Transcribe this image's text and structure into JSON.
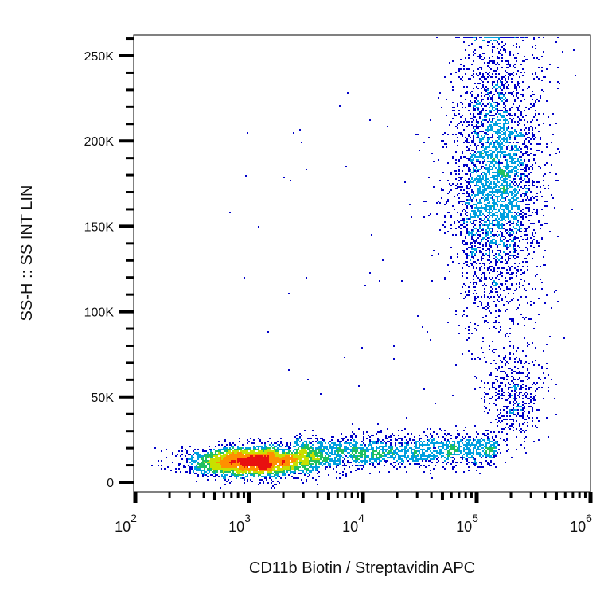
{
  "chart_data": {
    "type": "scatter",
    "subtype": "flow-cytometry density dot plot",
    "xlabel": "CD11b Biotin / Streptavidin APC",
    "ylabel": "SS-H :: SS INT LIN",
    "x_scale": "log",
    "xlim": [
      100,
      1000000
    ],
    "x_ticks": [
      {
        "value": 100,
        "base": "10",
        "exp": "2"
      },
      {
        "value": 1000,
        "base": "10",
        "exp": "3"
      },
      {
        "value": 10000,
        "base": "10",
        "exp": "4"
      },
      {
        "value": 100000,
        "base": "10",
        "exp": "5"
      },
      {
        "value": 1000000,
        "base": "10",
        "exp": "6"
      }
    ],
    "y_scale": "linear",
    "ylim": [
      -5000,
      262000
    ],
    "y_ticks": [
      {
        "value": 0,
        "label": "0"
      },
      {
        "value": 50000,
        "label": "50K"
      },
      {
        "value": 100000,
        "label": "100K"
      },
      {
        "value": 150000,
        "label": "150K"
      },
      {
        "value": 200000,
        "label": "200K"
      },
      {
        "value": 250000,
        "label": "250K"
      }
    ],
    "grid": false,
    "legend": "none",
    "color_scale": [
      "#0000c8",
      "#00a0e0",
      "#20c060",
      "#c8e000",
      "#ff9000",
      "#e81010"
    ],
    "populations": [
      {
        "x_center": 1100,
        "x_log_sd": 0.28,
        "y_center": 12000,
        "y_sd": 4500,
        "events": 3200
      },
      {
        "x_range": [
          2500,
          150000
        ],
        "y_center": 17000,
        "y_sd": 5000,
        "events": 1800
      },
      {
        "x_center": 150000,
        "x_log_sd": 0.2,
        "y_center": 180000,
        "y_sd": 42000,
        "events": 3600
      },
      {
        "x_center": 210000,
        "x_log_sd": 0.14,
        "y_center": 50000,
        "y_sd": 14000,
        "events": 450
      }
    ]
  }
}
